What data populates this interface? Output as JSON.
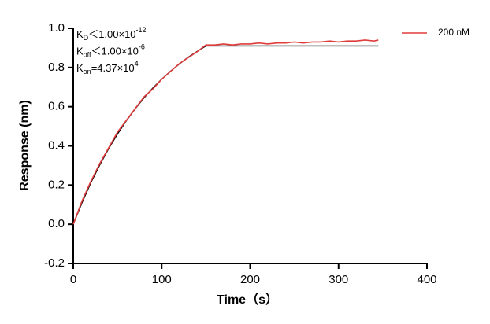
{
  "chart_data": {
    "type": "line",
    "x_label": "Time（s）",
    "y_label": "Response (nm)",
    "x": [
      0,
      10,
      20,
      30,
      40,
      50,
      60,
      70,
      80,
      90,
      100,
      110,
      120,
      130,
      140,
      150,
      160,
      170,
      180,
      190,
      200,
      210,
      220,
      230,
      240,
      250,
      260,
      270,
      280,
      290,
      300,
      310,
      320,
      330,
      340,
      345
    ],
    "series": [
      {
        "name": "200 nM",
        "color": "#e03c3c",
        "values": [
          0,
          0.12,
          0.22,
          0.31,
          0.39,
          0.47,
          0.53,
          0.59,
          0.65,
          0.69,
          0.74,
          0.78,
          0.82,
          0.85,
          0.88,
          0.915,
          0.915,
          0.92,
          0.915,
          0.92,
          0.92,
          0.925,
          0.92,
          0.925,
          0.925,
          0.93,
          0.925,
          0.93,
          0.93,
          0.935,
          0.93,
          0.935,
          0.935,
          0.94,
          0.935,
          0.94
        ]
      },
      {
        "color": "#000000",
        "values": [
          0,
          0.111,
          0.213,
          0.303,
          0.386,
          0.46,
          0.528,
          0.589,
          0.645,
          0.695,
          0.74,
          0.781,
          0.818,
          0.852,
          0.882,
          0.91,
          0.91,
          0.91,
          0.91,
          0.91,
          0.91,
          0.91,
          0.91,
          0.91,
          0.91,
          0.91,
          0.91,
          0.91,
          0.91,
          0.91,
          0.91,
          0.91,
          0.91,
          0.91,
          0.91,
          0.91
        ]
      }
    ],
    "xlim": [
      0,
      400
    ],
    "xticks": [
      0,
      100,
      200,
      300,
      400
    ],
    "ylim": [
      -0.2,
      1.0
    ],
    "yticks": [
      -0.2,
      {
        "value": 0,
        "label": "0.0"
      },
      0.2,
      0.4,
      0.6,
      0.8,
      {
        "value": 1,
        "label": "1.0"
      }
    ],
    "legend": "top-right",
    "annotations": [
      {
        "symbol": "K",
        "sub": "D",
        "relation": "＜",
        "mantissa": "1.00×10",
        "exponent": "-12"
      },
      {
        "symbol": "K",
        "sub": "off",
        "relation": "＜",
        "mantissa": "1.00×10",
        "exponent": "-6"
      },
      {
        "symbol": "K",
        "sub": "on",
        "relation": "=",
        "mantissa": "4.37×10",
        "exponent": "4"
      }
    ]
  }
}
